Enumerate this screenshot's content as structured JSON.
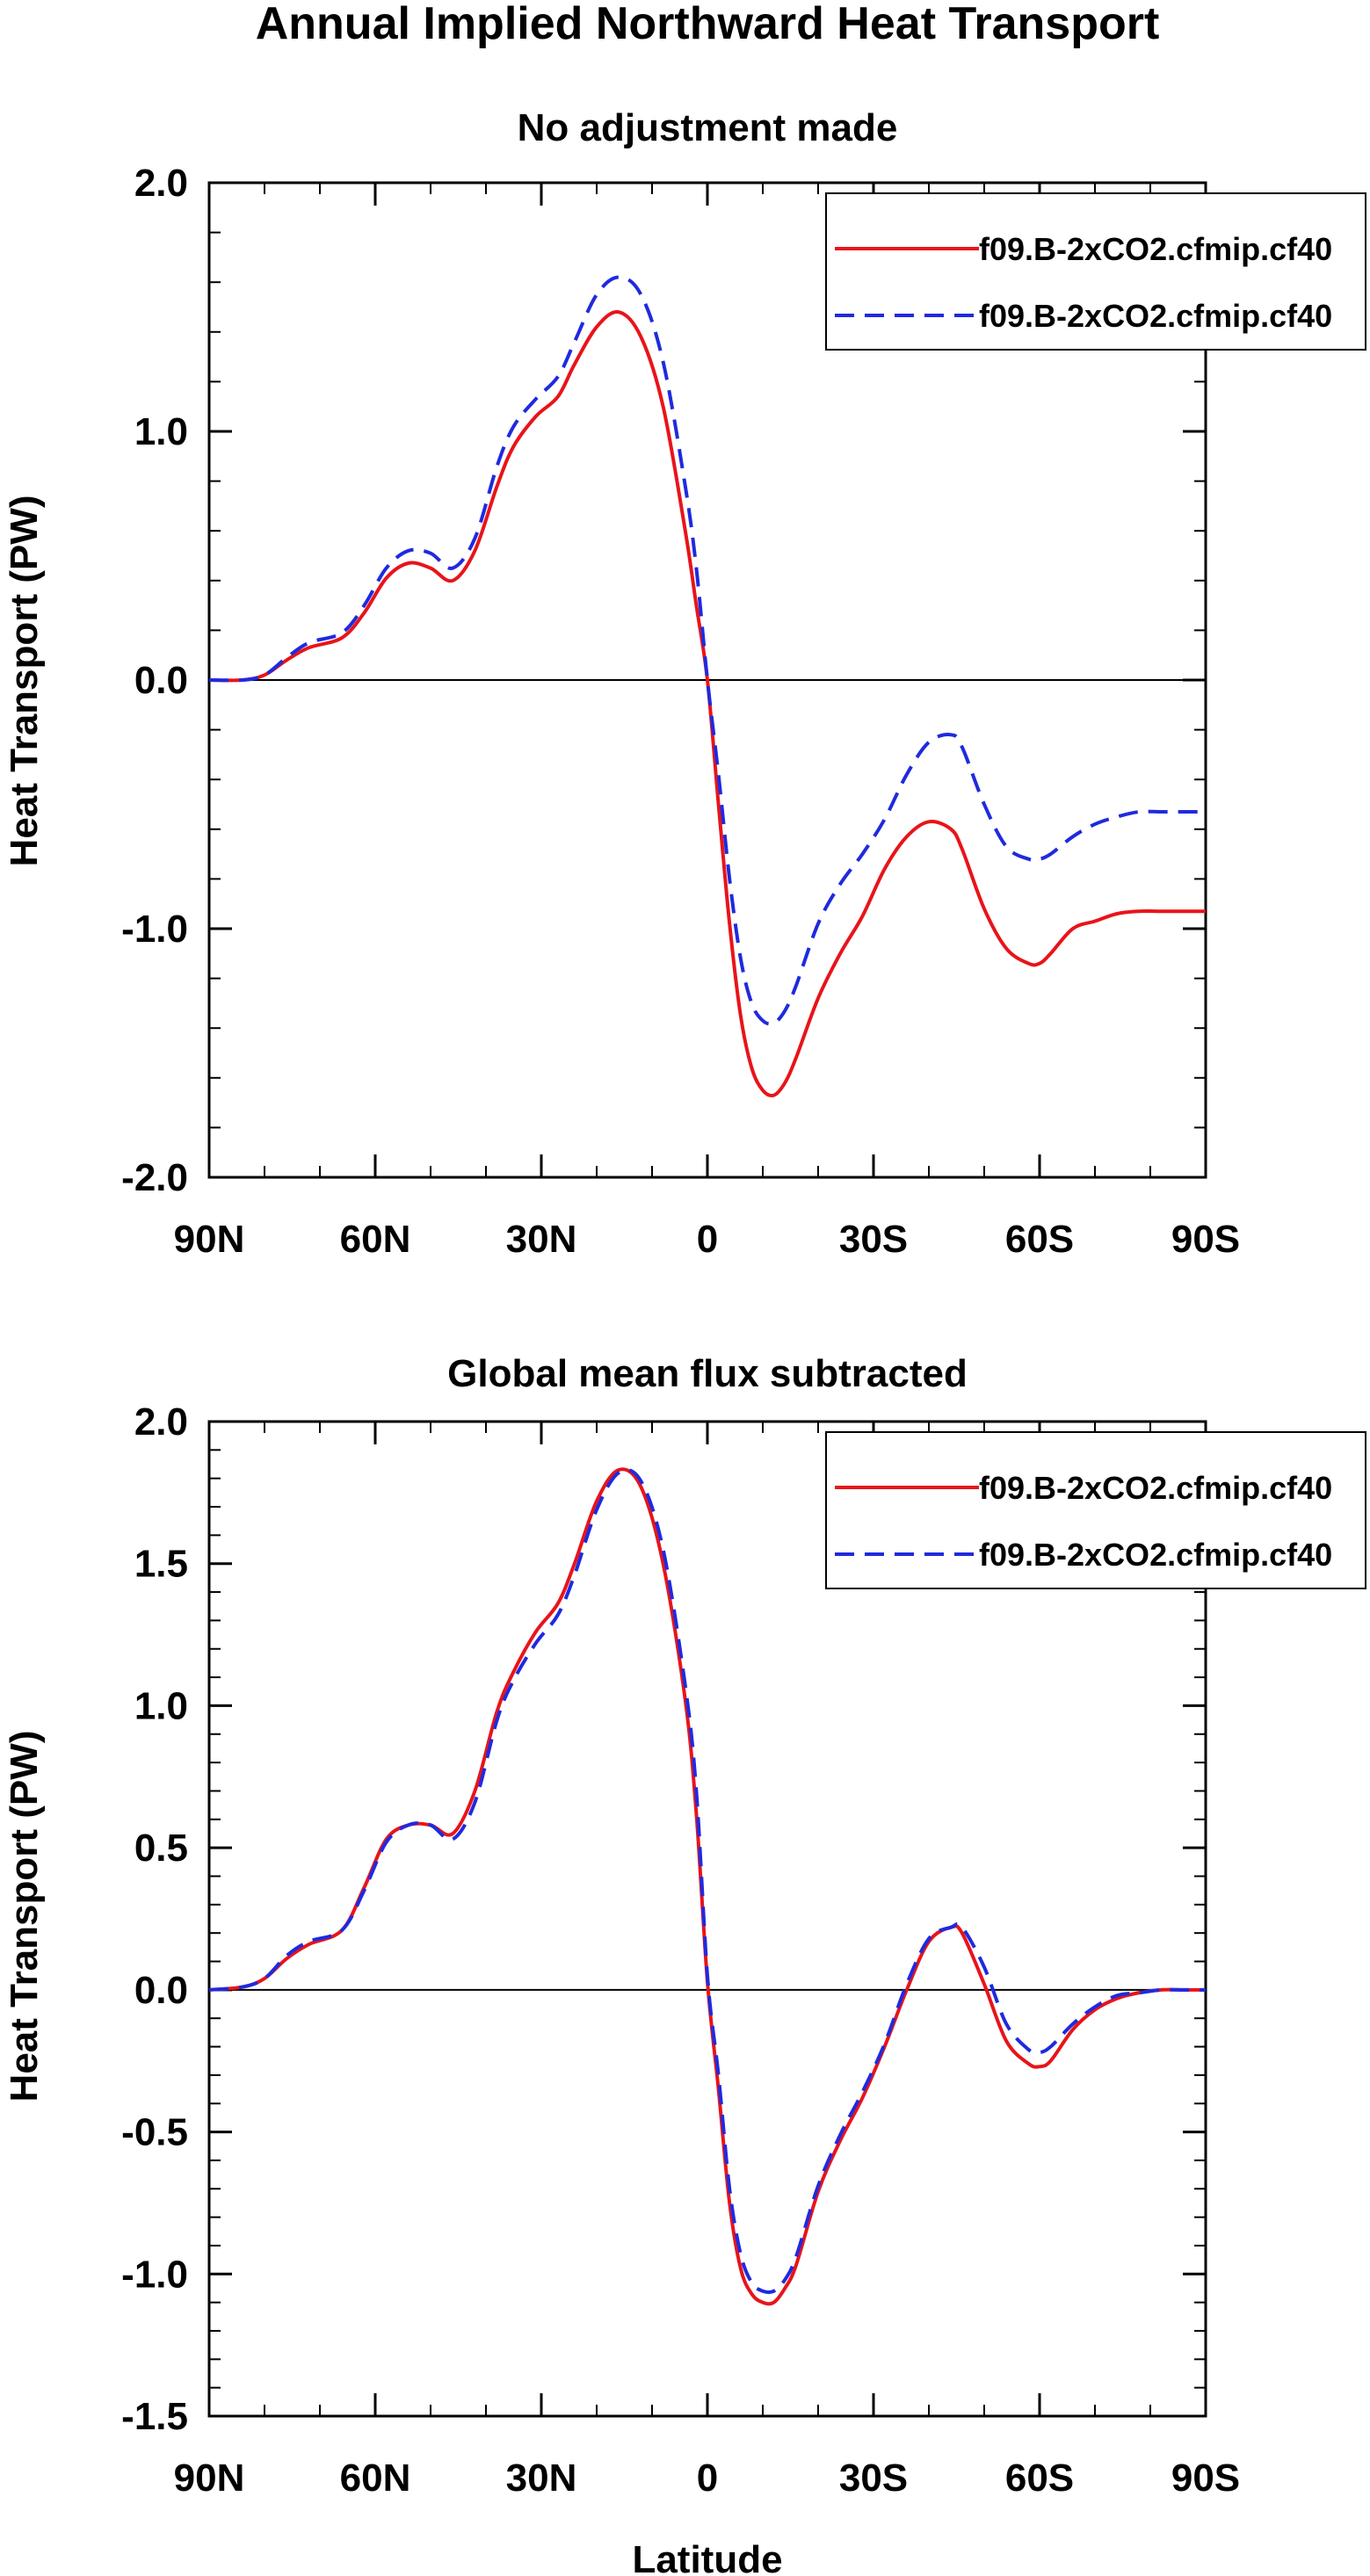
{
  "figure": {
    "title": "Annual Implied Northward Heat Transport",
    "xlabel": "Latitude"
  },
  "chart_data": [
    {
      "type": "line",
      "title": "No adjustment made",
      "xlabel": "",
      "ylabel": "Heat Transport (PW)",
      "xlim": [
        90,
        -90
      ],
      "ylim": [
        -2.0,
        2.0
      ],
      "x_ticks": [
        90,
        60,
        30,
        0,
        -30,
        -60,
        -90
      ],
      "x_tick_labels": [
        "90N",
        "60N",
        "30N",
        "0",
        "30S",
        "60S",
        "90S"
      ],
      "y_ticks": [
        -2.0,
        -1.0,
        0.0,
        1.0,
        2.0
      ],
      "y_tick_labels": [
        "-2.0",
        "-1.0",
        "0.0",
        "1.0",
        "2.0"
      ],
      "zero_line": true,
      "grid": false,
      "legend_position": "top-right",
      "series": [
        {
          "name": "f09.B-2xCO2.cfmip.cf40",
          "color": "#e8141a",
          "style": "solid",
          "x": [
            90,
            84,
            80,
            76,
            72,
            66,
            62,
            58,
            54,
            50,
            46,
            42,
            38,
            35,
            31,
            27,
            24,
            20,
            16,
            12,
            8,
            4,
            2,
            0,
            -2,
            -4,
            -6,
            -8,
            -10,
            -12,
            -14,
            -16,
            -20,
            -24,
            -28,
            -32,
            -36,
            -40,
            -44,
            -46,
            -50,
            -54,
            -58,
            -60,
            -62,
            -66,
            -70,
            -74,
            -78,
            -82,
            -86,
            -90
          ],
          "values": [
            0.0,
            0.0,
            0.02,
            0.08,
            0.13,
            0.17,
            0.27,
            0.41,
            0.47,
            0.45,
            0.4,
            0.52,
            0.78,
            0.94,
            1.06,
            1.14,
            1.27,
            1.42,
            1.48,
            1.38,
            1.1,
            0.6,
            0.3,
            0.0,
            -0.5,
            -0.98,
            -1.35,
            -1.56,
            -1.65,
            -1.67,
            -1.62,
            -1.52,
            -1.28,
            -1.1,
            -0.95,
            -0.76,
            -0.63,
            -0.57,
            -0.6,
            -0.68,
            -0.92,
            -1.08,
            -1.14,
            -1.14,
            -1.1,
            -1.0,
            -0.97,
            -0.94,
            -0.93,
            -0.93,
            -0.93,
            -0.93
          ]
        },
        {
          "name": "f09.B-2xCO2.cfmip.cf40",
          "color": "#1f2adf",
          "style": "dashed",
          "x": [
            90,
            84,
            80,
            76,
            72,
            66,
            62,
            58,
            54,
            50,
            46,
            42,
            38,
            35,
            31,
            27,
            24,
            20,
            16,
            12,
            8,
            4,
            2,
            0,
            -2,
            -4,
            -6,
            -8,
            -10,
            -12,
            -14,
            -16,
            -20,
            -24,
            -28,
            -32,
            -36,
            -40,
            -44,
            -46,
            -50,
            -54,
            -58,
            -60,
            -62,
            -66,
            -70,
            -74,
            -78,
            -82,
            -86,
            -90
          ],
          "values": [
            0.0,
            0.0,
            0.02,
            0.09,
            0.15,
            0.19,
            0.3,
            0.45,
            0.52,
            0.51,
            0.45,
            0.57,
            0.86,
            1.02,
            1.13,
            1.22,
            1.36,
            1.55,
            1.62,
            1.55,
            1.28,
            0.78,
            0.45,
            0.0,
            -0.38,
            -0.8,
            -1.12,
            -1.3,
            -1.37,
            -1.38,
            -1.33,
            -1.23,
            -0.98,
            -0.82,
            -0.7,
            -0.56,
            -0.38,
            -0.25,
            -0.22,
            -0.27,
            -0.5,
            -0.67,
            -0.72,
            -0.72,
            -0.7,
            -0.63,
            -0.58,
            -0.55,
            -0.53,
            -0.53,
            -0.53,
            -0.53
          ]
        }
      ]
    },
    {
      "type": "line",
      "title": "Global mean flux subtracted",
      "xlabel": "Latitude",
      "ylabel": "Heat Transport (PW)",
      "xlim": [
        90,
        -90
      ],
      "ylim": [
        -1.5,
        2.0
      ],
      "x_ticks": [
        90,
        60,
        30,
        0,
        -30,
        -60,
        -90
      ],
      "x_tick_labels": [
        "90N",
        "60N",
        "30N",
        "0",
        "30S",
        "60S",
        "90S"
      ],
      "y_ticks": [
        -1.5,
        -1.0,
        -0.5,
        0.0,
        0.5,
        1.0,
        1.5,
        2.0
      ],
      "y_tick_labels": [
        "-1.5",
        "-1.0",
        "-0.5",
        "0.0",
        "0.5",
        "1.0",
        "1.5",
        "2.0"
      ],
      "zero_line": true,
      "grid": false,
      "legend_position": "top-right",
      "series": [
        {
          "name": "f09.B-2xCO2.cfmip.cf40",
          "color": "#e8141a",
          "style": "solid",
          "x": [
            90,
            84,
            80,
            76,
            72,
            66,
            62,
            58,
            54,
            50,
            46,
            42,
            38,
            35,
            31,
            27,
            24,
            20,
            16,
            12,
            8,
            4,
            2,
            0,
            -2,
            -4,
            -6,
            -8,
            -10,
            -12,
            -14,
            -16,
            -20,
            -24,
            -28,
            -32,
            -36,
            -40,
            -44,
            -46,
            -50,
            -54,
            -58,
            -60,
            -62,
            -66,
            -70,
            -74,
            -78,
            -82,
            -86,
            -90
          ],
          "values": [
            0.0,
            0.01,
            0.04,
            0.11,
            0.16,
            0.21,
            0.36,
            0.53,
            0.58,
            0.58,
            0.55,
            0.7,
            0.98,
            1.12,
            1.26,
            1.36,
            1.5,
            1.72,
            1.83,
            1.77,
            1.5,
            1.02,
            0.62,
            0.03,
            -0.35,
            -0.75,
            -0.98,
            -1.07,
            -1.1,
            -1.1,
            -1.05,
            -0.97,
            -0.71,
            -0.53,
            -0.38,
            -0.2,
            0.0,
            0.17,
            0.22,
            0.2,
            0.02,
            -0.18,
            -0.26,
            -0.27,
            -0.25,
            -0.14,
            -0.07,
            -0.03,
            -0.01,
            0.0,
            0.0,
            0.0
          ]
        },
        {
          "name": "f09.B-2xCO2.cfmip.cf40",
          "color": "#1f2adf",
          "style": "dashed",
          "x": [
            90,
            84,
            80,
            76,
            72,
            66,
            62,
            58,
            54,
            50,
            46,
            42,
            38,
            35,
            31,
            27,
            24,
            20,
            16,
            12,
            8,
            4,
            2,
            0,
            -2,
            -4,
            -6,
            -8,
            -10,
            -12,
            -14,
            -16,
            -20,
            -24,
            -28,
            -32,
            -36,
            -40,
            -44,
            -46,
            -50,
            -54,
            -58,
            -60,
            -62,
            -66,
            -70,
            -74,
            -78,
            -82,
            -86,
            -90
          ],
          "values": [
            0.0,
            0.01,
            0.04,
            0.12,
            0.17,
            0.21,
            0.35,
            0.52,
            0.58,
            0.58,
            0.53,
            0.66,
            0.95,
            1.09,
            1.22,
            1.32,
            1.46,
            1.69,
            1.82,
            1.79,
            1.55,
            1.07,
            0.7,
            0.05,
            -0.3,
            -0.7,
            -0.93,
            -1.03,
            -1.06,
            -1.06,
            -1.02,
            -0.94,
            -0.69,
            -0.51,
            -0.36,
            -0.19,
            0.02,
            0.18,
            0.22,
            0.22,
            0.08,
            -0.12,
            -0.21,
            -0.22,
            -0.2,
            -0.12,
            -0.06,
            -0.02,
            -0.01,
            0.0,
            0.0,
            0.0
          ]
        }
      ]
    }
  ]
}
